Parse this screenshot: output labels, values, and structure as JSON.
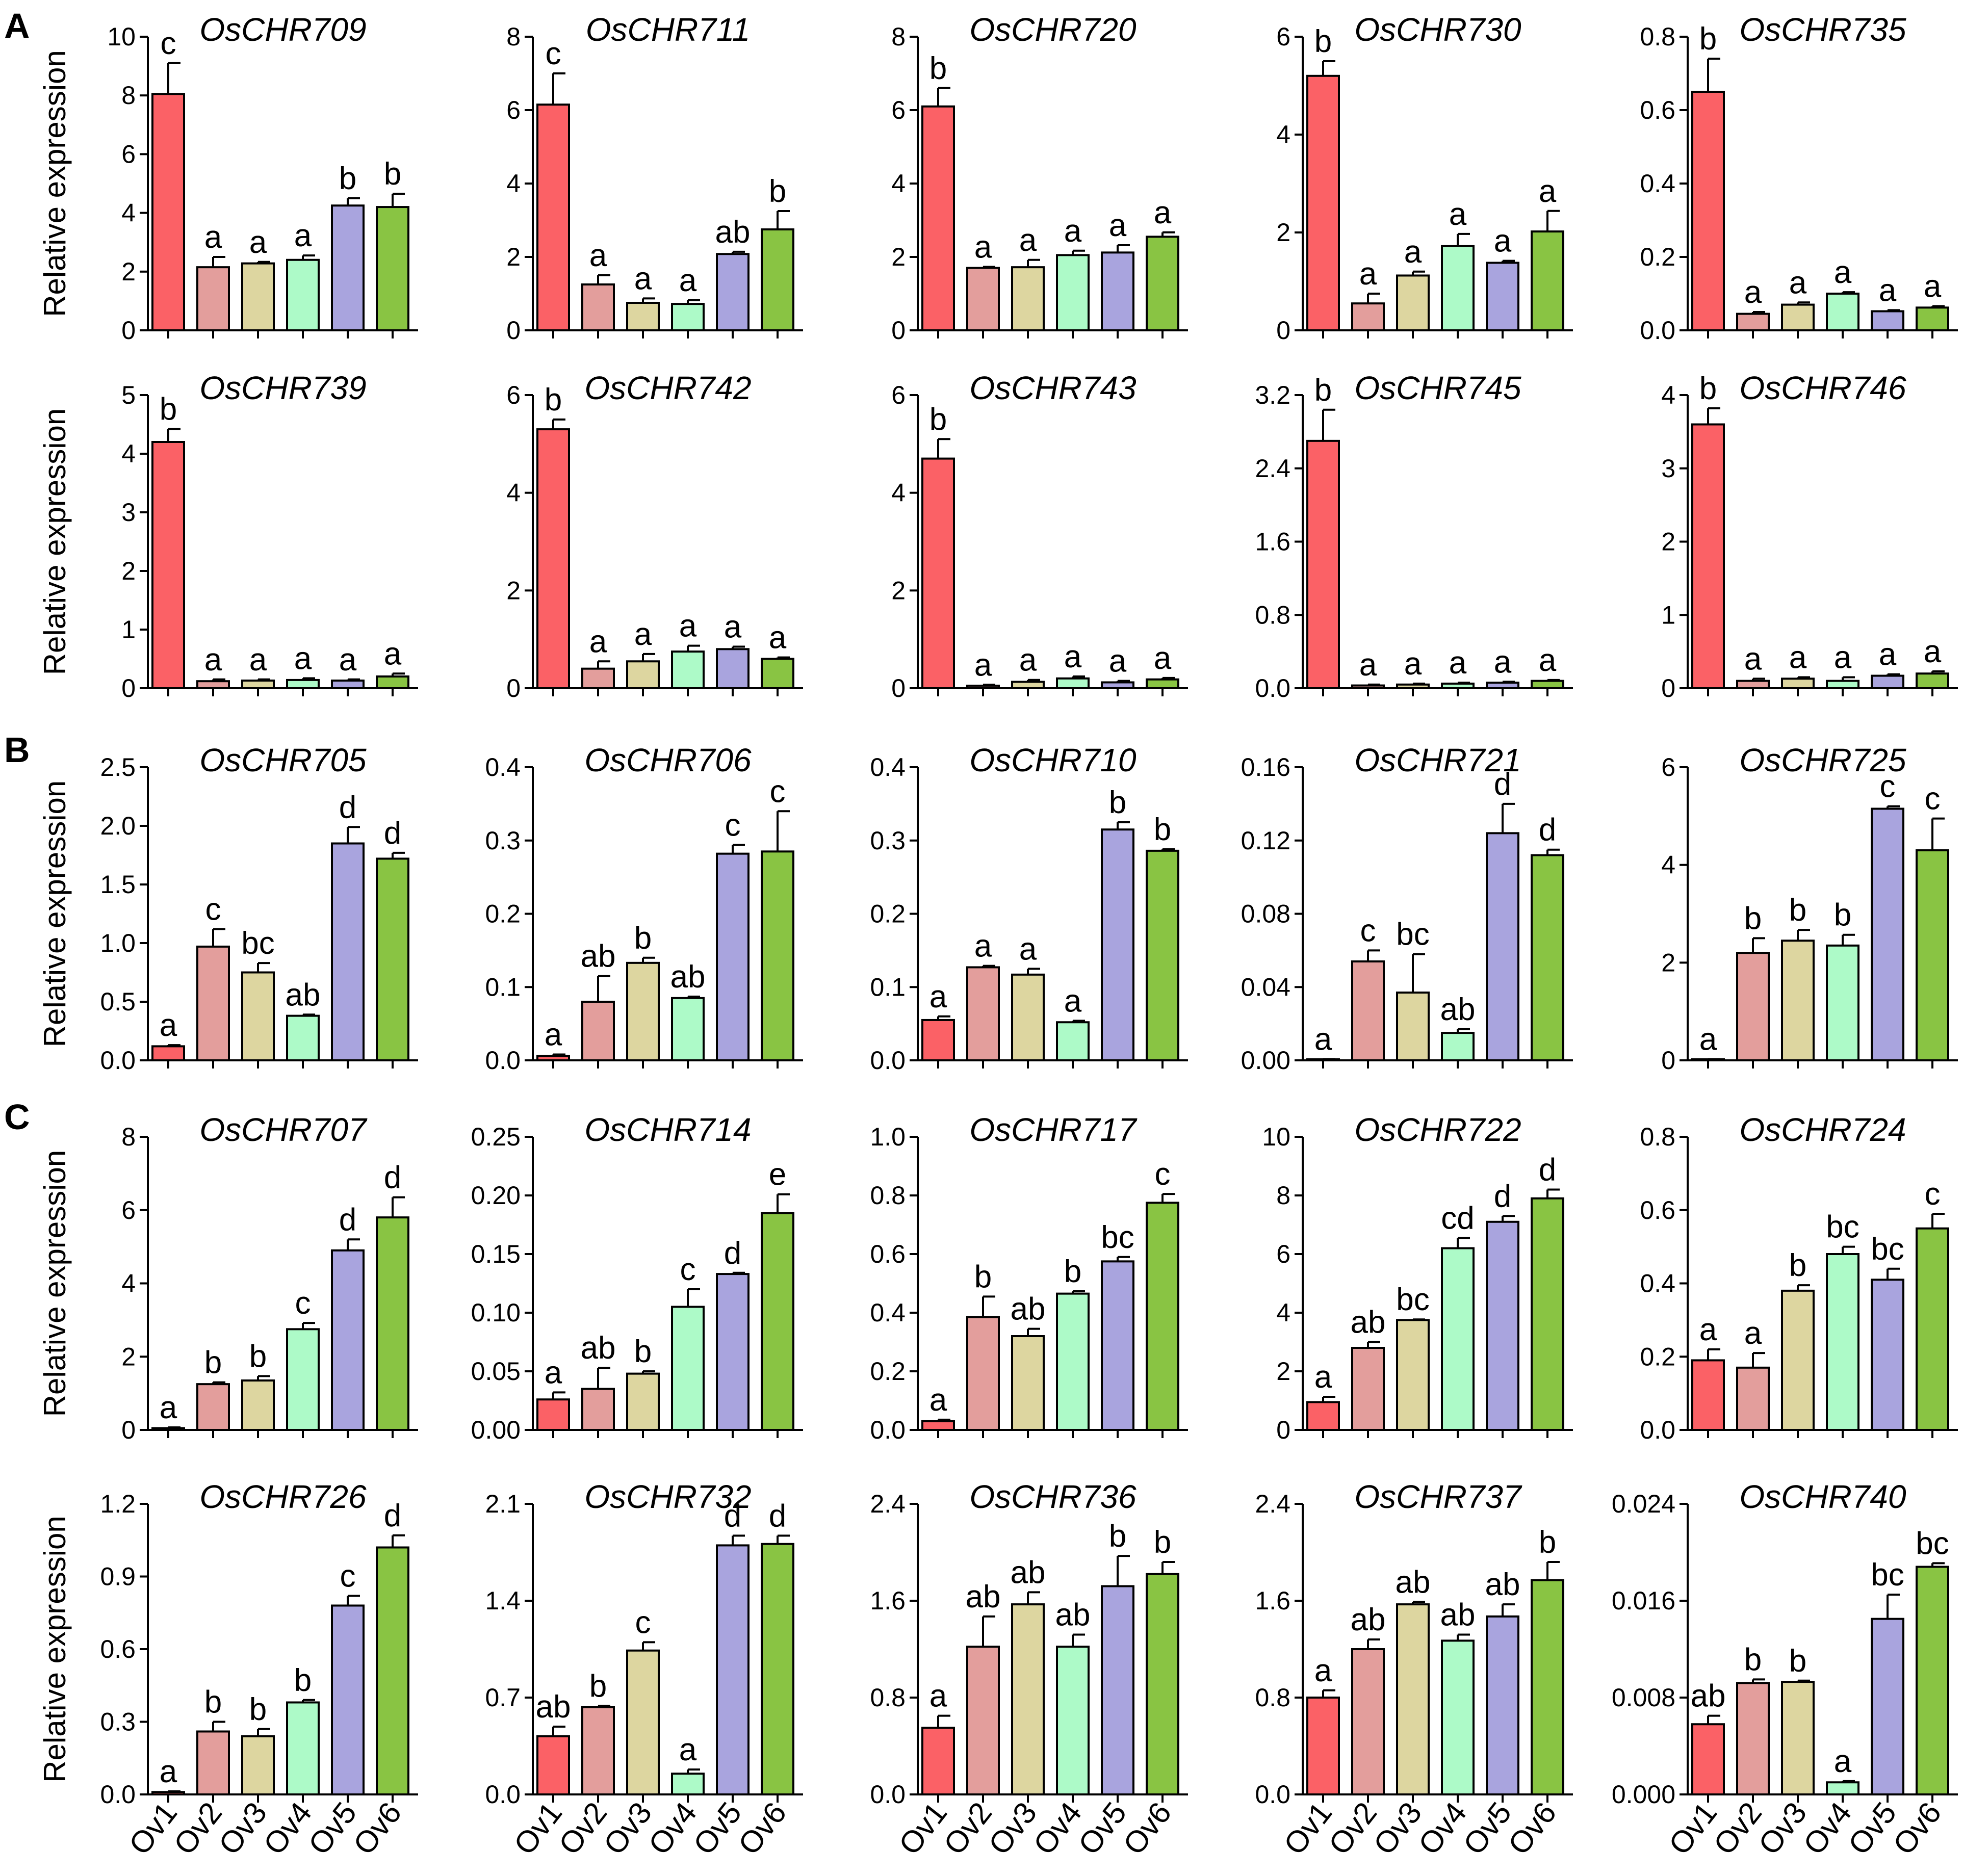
{
  "figure": {
    "panel_labels": [
      "A",
      "B",
      "C"
    ],
    "ylabel": "Relative expression",
    "categories": [
      "Ov1",
      "Ov2",
      "Ov3",
      "Ov4",
      "Ov5",
      "Ov6"
    ],
    "colors": [
      "#fb6166",
      "#e39e9c",
      "#ddd6a0",
      "#adfac8",
      "#a9a4de",
      "#89c443"
    ]
  },
  "chart_data": [
    {
      "type": "bar",
      "title": "OsCHR709",
      "ylabel": "Relative expression",
      "categories": [
        "Ov1",
        "Ov2",
        "Ov3",
        "Ov4",
        "Ov5",
        "Ov6"
      ],
      "values": [
        8.05,
        2.15,
        2.28,
        2.4,
        4.25,
        4.2
      ],
      "errors": [
        1.05,
        0.35,
        0.05,
        0.15,
        0.25,
        0.45
      ],
      "letters": [
        "c",
        "a",
        "a",
        "a",
        "b",
        "b"
      ],
      "ylim": [
        0,
        10
      ],
      "yticks": [
        "0",
        "2",
        "4",
        "6",
        "8",
        "10"
      ]
    },
    {
      "type": "bar",
      "title": "OsCHR711",
      "ylabel": "",
      "categories": [
        "Ov1",
        "Ov2",
        "Ov3",
        "Ov4",
        "Ov5",
        "Ov6"
      ],
      "values": [
        6.15,
        1.25,
        0.75,
        0.72,
        2.08,
        2.75
      ],
      "errors": [
        0.85,
        0.25,
        0.12,
        0.1,
        0.06,
        0.5
      ],
      "letters": [
        "c",
        "a",
        "a",
        "a",
        "ab",
        "b"
      ],
      "ylim": [
        0,
        8
      ],
      "yticks": [
        "0",
        "2",
        "4",
        "6",
        "8"
      ]
    },
    {
      "type": "bar",
      "title": "OsCHR720",
      "ylabel": "",
      "categories": [
        "Ov1",
        "Ov2",
        "Ov3",
        "Ov4",
        "Ov5",
        "Ov6"
      ],
      "values": [
        6.1,
        1.7,
        1.72,
        2.05,
        2.12,
        2.55
      ],
      "errors": [
        0.5,
        0.03,
        0.2,
        0.12,
        0.2,
        0.12
      ],
      "letters": [
        "b",
        "a",
        "a",
        "a",
        "a",
        "a"
      ],
      "ylim": [
        0,
        8
      ],
      "yticks": [
        "0",
        "2",
        "4",
        "6",
        "8"
      ]
    },
    {
      "type": "bar",
      "title": "OsCHR730",
      "ylabel": "",
      "categories": [
        "Ov1",
        "Ov2",
        "Ov3",
        "Ov4",
        "Ov5",
        "Ov6"
      ],
      "values": [
        5.2,
        0.55,
        1.12,
        1.72,
        1.38,
        2.02
      ],
      "errors": [
        0.3,
        0.2,
        0.08,
        0.25,
        0.04,
        0.42
      ],
      "letters": [
        "b",
        "a",
        "a",
        "a",
        "a",
        "a"
      ],
      "ylim": [
        0,
        6
      ],
      "yticks": [
        "0",
        "2",
        "4",
        "6"
      ]
    },
    {
      "type": "bar",
      "title": "OsCHR735",
      "ylabel": "",
      "categories": [
        "Ov1",
        "Ov2",
        "Ov3",
        "Ov4",
        "Ov5",
        "Ov6"
      ],
      "values": [
        0.65,
        0.045,
        0.07,
        0.1,
        0.052,
        0.062
      ],
      "errors": [
        0.09,
        0.005,
        0.006,
        0.004,
        0.003,
        0.004
      ],
      "letters": [
        "b",
        "a",
        "a",
        "a",
        "a",
        "a"
      ],
      "ylim": [
        0,
        0.8
      ],
      "yticks": [
        "0.0",
        "0.2",
        "0.4",
        "0.6",
        "0.8"
      ]
    },
    {
      "type": "bar",
      "title": "OsCHR739",
      "ylabel": "Relative expression",
      "categories": [
        "Ov1",
        "Ov2",
        "Ov3",
        "Ov4",
        "Ov5",
        "Ov6"
      ],
      "values": [
        4.2,
        0.12,
        0.13,
        0.14,
        0.13,
        0.2
      ],
      "errors": [
        0.22,
        0.03,
        0.02,
        0.03,
        0.02,
        0.05
      ],
      "letters": [
        "b",
        "a",
        "a",
        "a",
        "a",
        "a"
      ],
      "ylim": [
        0,
        5
      ],
      "yticks": [
        "0",
        "1",
        "2",
        "3",
        "4",
        "5"
      ]
    },
    {
      "type": "bar",
      "title": "OsCHR742",
      "ylabel": "",
      "categories": [
        "Ov1",
        "Ov2",
        "Ov3",
        "Ov4",
        "Ov5",
        "Ov6"
      ],
      "values": [
        5.3,
        0.4,
        0.55,
        0.75,
        0.8,
        0.6
      ],
      "errors": [
        0.2,
        0.15,
        0.15,
        0.12,
        0.05,
        0.03
      ],
      "letters": [
        "b",
        "a",
        "a",
        "a",
        "a",
        "a"
      ],
      "ylim": [
        0,
        6
      ],
      "yticks": [
        "0",
        "2",
        "4",
        "6"
      ]
    },
    {
      "type": "bar",
      "title": "OsCHR743",
      "ylabel": "",
      "categories": [
        "Ov1",
        "Ov2",
        "Ov3",
        "Ov4",
        "Ov5",
        "Ov6"
      ],
      "values": [
        4.7,
        0.05,
        0.13,
        0.2,
        0.12,
        0.18
      ],
      "errors": [
        0.4,
        0.02,
        0.04,
        0.04,
        0.03,
        0.03
      ],
      "letters": [
        "b",
        "a",
        "a",
        "a",
        "a",
        "a"
      ],
      "ylim": [
        0,
        6
      ],
      "yticks": [
        "0",
        "2",
        "4",
        "6"
      ]
    },
    {
      "type": "bar",
      "title": "OsCHR745",
      "ylabel": "",
      "categories": [
        "Ov1",
        "Ov2",
        "Ov3",
        "Ov4",
        "Ov5",
        "Ov6"
      ],
      "values": [
        2.7,
        0.03,
        0.04,
        0.05,
        0.06,
        0.08
      ],
      "errors": [
        0.34,
        0.01,
        0.01,
        0.01,
        0.01,
        0.01
      ],
      "letters": [
        "b",
        "a",
        "a",
        "a",
        "a",
        "a"
      ],
      "ylim": [
        0,
        3.2
      ],
      "yticks": [
        "0.0",
        "0.8",
        "1.6",
        "2.4",
        "3.2"
      ]
    },
    {
      "type": "bar",
      "title": "OsCHR746",
      "ylabel": "",
      "categories": [
        "Ov1",
        "Ov2",
        "Ov3",
        "Ov4",
        "Ov5",
        "Ov6"
      ],
      "values": [
        3.6,
        0.1,
        0.13,
        0.1,
        0.17,
        0.2
      ],
      "errors": [
        0.22,
        0.03,
        0.02,
        0.05,
        0.02,
        0.03
      ],
      "letters": [
        "b",
        "a",
        "a",
        "a",
        "a",
        "a"
      ],
      "ylim": [
        0,
        4
      ],
      "yticks": [
        "0",
        "1",
        "2",
        "3",
        "4"
      ]
    },
    {
      "type": "bar",
      "title": "OsCHR705",
      "ylabel": "Relative expression",
      "categories": [
        "Ov1",
        "Ov2",
        "Ov3",
        "Ov4",
        "Ov5",
        "Ov6"
      ],
      "values": [
        0.12,
        0.97,
        0.75,
        0.38,
        1.85,
        1.72
      ],
      "errors": [
        0.01,
        0.15,
        0.08,
        0.01,
        0.14,
        0.05
      ],
      "letters": [
        "a",
        "c",
        "bc",
        "ab",
        "d",
        "d"
      ],
      "ylim": [
        0,
        2.5
      ],
      "yticks": [
        "0.0",
        "0.5",
        "1.0",
        "1.5",
        "2.0",
        "2.5"
      ]
    },
    {
      "type": "bar",
      "title": "OsCHR706",
      "ylabel": "",
      "categories": [
        "Ov1",
        "Ov2",
        "Ov3",
        "Ov4",
        "Ov5",
        "Ov6"
      ],
      "values": [
        0.006,
        0.08,
        0.133,
        0.085,
        0.282,
        0.285
      ],
      "errors": [
        0.002,
        0.035,
        0.007,
        0.002,
        0.012,
        0.055
      ],
      "letters": [
        "a",
        "ab",
        "b",
        "ab",
        "c",
        "c"
      ],
      "ylim": [
        0,
        0.4
      ],
      "yticks": [
        "0.0",
        "0.1",
        "0.2",
        "0.3",
        "0.4"
      ]
    },
    {
      "type": "bar",
      "title": "OsCHR710",
      "ylabel": "",
      "categories": [
        "Ov1",
        "Ov2",
        "Ov3",
        "Ov4",
        "Ov5",
        "Ov6"
      ],
      "values": [
        0.055,
        0.127,
        0.117,
        0.052,
        0.315,
        0.286
      ],
      "errors": [
        0.005,
        0.002,
        0.008,
        0.002,
        0.01,
        0.002
      ],
      "letters": [
        "a",
        "a",
        "a",
        "a",
        "b",
        "b"
      ],
      "ylim": [
        0,
        0.4
      ],
      "yticks": [
        "0.0",
        "0.1",
        "0.2",
        "0.3",
        "0.4"
      ]
    },
    {
      "type": "bar",
      "title": "OsCHR721",
      "ylabel": "",
      "categories": [
        "Ov1",
        "Ov2",
        "Ov3",
        "Ov4",
        "Ov5",
        "Ov6"
      ],
      "values": [
        0.0005,
        0.054,
        0.037,
        0.015,
        0.124,
        0.112
      ],
      "errors": [
        0.0002,
        0.006,
        0.021,
        0.002,
        0.016,
        0.003
      ],
      "letters": [
        "a",
        "c",
        "bc",
        "ab",
        "d",
        "d"
      ],
      "ylim": [
        0,
        0.16
      ],
      "yticks": [
        "0.00",
        "0.04",
        "0.08",
        "0.12",
        "0.16"
      ]
    },
    {
      "type": "bar",
      "title": "OsCHR725",
      "ylabel": "",
      "categories": [
        "Ov1",
        "Ov2",
        "Ov3",
        "Ov4",
        "Ov5",
        "Ov6"
      ],
      "values": [
        0.02,
        2.2,
        2.45,
        2.35,
        5.15,
        4.3
      ],
      "errors": [
        0.005,
        0.3,
        0.22,
        0.22,
        0.05,
        0.65
      ],
      "letters": [
        "a",
        "b",
        "b",
        "b",
        "c",
        "c"
      ],
      "ylim": [
        0,
        6
      ],
      "yticks": [
        "0",
        "2",
        "4",
        "6"
      ]
    },
    {
      "type": "bar",
      "title": "OsCHR707",
      "ylabel": "Relative expression",
      "categories": [
        "Ov1",
        "Ov2",
        "Ov3",
        "Ov4",
        "Ov5",
        "Ov6"
      ],
      "values": [
        0.05,
        1.25,
        1.35,
        2.75,
        4.9,
        5.8
      ],
      "errors": [
        0.02,
        0.05,
        0.12,
        0.17,
        0.3,
        0.55
      ],
      "letters": [
        "a",
        "b",
        "b",
        "c",
        "d",
        "d"
      ],
      "ylim": [
        0,
        8
      ],
      "yticks": [
        "0",
        "2",
        "4",
        "6",
        "8"
      ]
    },
    {
      "type": "bar",
      "title": "OsCHR714",
      "ylabel": "",
      "categories": [
        "Ov1",
        "Ov2",
        "Ov3",
        "Ov4",
        "Ov5",
        "Ov6"
      ],
      "values": [
        0.026,
        0.035,
        0.048,
        0.105,
        0.133,
        0.185
      ],
      "errors": [
        0.006,
        0.018,
        0.002,
        0.015,
        0.001,
        0.016
      ],
      "letters": [
        "a",
        "ab",
        "b",
        "c",
        "d",
        "e"
      ],
      "ylim": [
        0,
        0.25
      ],
      "yticks": [
        "0.00",
        "0.05",
        "0.10",
        "0.15",
        "0.20",
        "0.25"
      ]
    },
    {
      "type": "bar",
      "title": "OsCHR717",
      "ylabel": "",
      "categories": [
        "Ov1",
        "Ov2",
        "Ov3",
        "Ov4",
        "Ov5",
        "Ov6"
      ],
      "values": [
        0.03,
        0.385,
        0.32,
        0.465,
        0.575,
        0.775
      ],
      "errors": [
        0.005,
        0.07,
        0.025,
        0.008,
        0.015,
        0.03
      ],
      "letters": [
        "a",
        "b",
        "ab",
        "b",
        "bc",
        "c"
      ],
      "ylim": [
        0,
        1.0
      ],
      "yticks": [
        "0.0",
        "0.2",
        "0.4",
        "0.6",
        "0.8",
        "1.0"
      ]
    },
    {
      "type": "bar",
      "title": "OsCHR722",
      "ylabel": "",
      "categories": [
        "Ov1",
        "Ov2",
        "Ov3",
        "Ov4",
        "Ov5",
        "Ov6"
      ],
      "values": [
        0.95,
        2.8,
        3.75,
        6.2,
        7.1,
        7.9
      ],
      "errors": [
        0.18,
        0.2,
        0.02,
        0.35,
        0.2,
        0.3
      ],
      "letters": [
        "a",
        "ab",
        "bc",
        "cd",
        "d",
        "d"
      ],
      "ylim": [
        0,
        10
      ],
      "yticks": [
        "0",
        "2",
        "4",
        "6",
        "8",
        "10"
      ]
    },
    {
      "type": "bar",
      "title": "OsCHR724",
      "ylabel": "",
      "categories": [
        "Ov1",
        "Ov2",
        "Ov3",
        "Ov4",
        "Ov5",
        "Ov6"
      ],
      "values": [
        0.19,
        0.17,
        0.38,
        0.48,
        0.41,
        0.55
      ],
      "errors": [
        0.03,
        0.04,
        0.015,
        0.02,
        0.03,
        0.04
      ],
      "letters": [
        "a",
        "a",
        "b",
        "bc",
        "bc",
        "c"
      ],
      "ylim": [
        0,
        0.8
      ],
      "yticks": [
        "0.0",
        "0.2",
        "0.4",
        "0.6",
        "0.8"
      ]
    },
    {
      "type": "bar",
      "title": "OsCHR726",
      "ylabel": "Relative expression",
      "categories": [
        "Ov1",
        "Ov2",
        "Ov3",
        "Ov4",
        "Ov5",
        "Ov6"
      ],
      "values": [
        0.01,
        0.26,
        0.24,
        0.38,
        0.78,
        1.02
      ],
      "errors": [
        0.003,
        0.04,
        0.03,
        0.01,
        0.04,
        0.05
      ],
      "letters": [
        "a",
        "b",
        "b",
        "b",
        "c",
        "d"
      ],
      "ylim": [
        0,
        1.2
      ],
      "yticks": [
        "0.0",
        "0.3",
        "0.6",
        "0.9",
        "1.2"
      ]
    },
    {
      "type": "bar",
      "title": "OsCHR732",
      "ylabel": "",
      "categories": [
        "Ov1",
        "Ov2",
        "Ov3",
        "Ov4",
        "Ov5",
        "Ov6"
      ],
      "values": [
        0.42,
        0.63,
        1.04,
        0.15,
        1.8,
        1.81
      ],
      "errors": [
        0.07,
        0.01,
        0.06,
        0.03,
        0.07,
        0.06
      ],
      "letters": [
        "ab",
        "b",
        "c",
        "a",
        "d",
        "d"
      ],
      "ylim": [
        0,
        2.1
      ],
      "yticks": [
        "0.0",
        "0.7",
        "1.4",
        "2.1"
      ]
    },
    {
      "type": "bar",
      "title": "OsCHR736",
      "ylabel": "",
      "categories": [
        "Ov1",
        "Ov2",
        "Ov3",
        "Ov4",
        "Ov5",
        "Ov6"
      ],
      "values": [
        0.55,
        1.22,
        1.57,
        1.22,
        1.72,
        1.82
      ],
      "errors": [
        0.1,
        0.25,
        0.1,
        0.1,
        0.25,
        0.1
      ],
      "letters": [
        "a",
        "ab",
        "ab",
        "ab",
        "b",
        "b"
      ],
      "ylim": [
        0,
        2.4
      ],
      "yticks": [
        "0.0",
        "0.8",
        "1.6",
        "2.4"
      ]
    },
    {
      "type": "bar",
      "title": "OsCHR737",
      "ylabel": "",
      "categories": [
        "Ov1",
        "Ov2",
        "Ov3",
        "Ov4",
        "Ov5",
        "Ov6"
      ],
      "values": [
        0.8,
        1.2,
        1.57,
        1.27,
        1.47,
        1.77
      ],
      "errors": [
        0.06,
        0.08,
        0.02,
        0.05,
        0.1,
        0.15
      ],
      "letters": [
        "a",
        "ab",
        "ab",
        "ab",
        "ab",
        "b"
      ],
      "ylim": [
        0,
        2.4
      ],
      "yticks": [
        "0.0",
        "0.8",
        "1.6",
        "2.4"
      ]
    },
    {
      "type": "bar",
      "title": "OsCHR740",
      "ylabel": "",
      "categories": [
        "Ov1",
        "Ov2",
        "Ov3",
        "Ov4",
        "Ov5",
        "Ov6"
      ],
      "values": [
        0.0058,
        0.0092,
        0.0093,
        0.001,
        0.0145,
        0.0188
      ],
      "errors": [
        0.0007,
        0.0003,
        0.0001,
        0.0001,
        0.002,
        0.0003
      ],
      "letters": [
        "ab",
        "b",
        "b",
        "a",
        "bc",
        "bc"
      ],
      "ylim": [
        0,
        0.024
      ],
      "yticks": [
        "0.000",
        "0.008",
        "0.016",
        "0.024"
      ]
    }
  ]
}
